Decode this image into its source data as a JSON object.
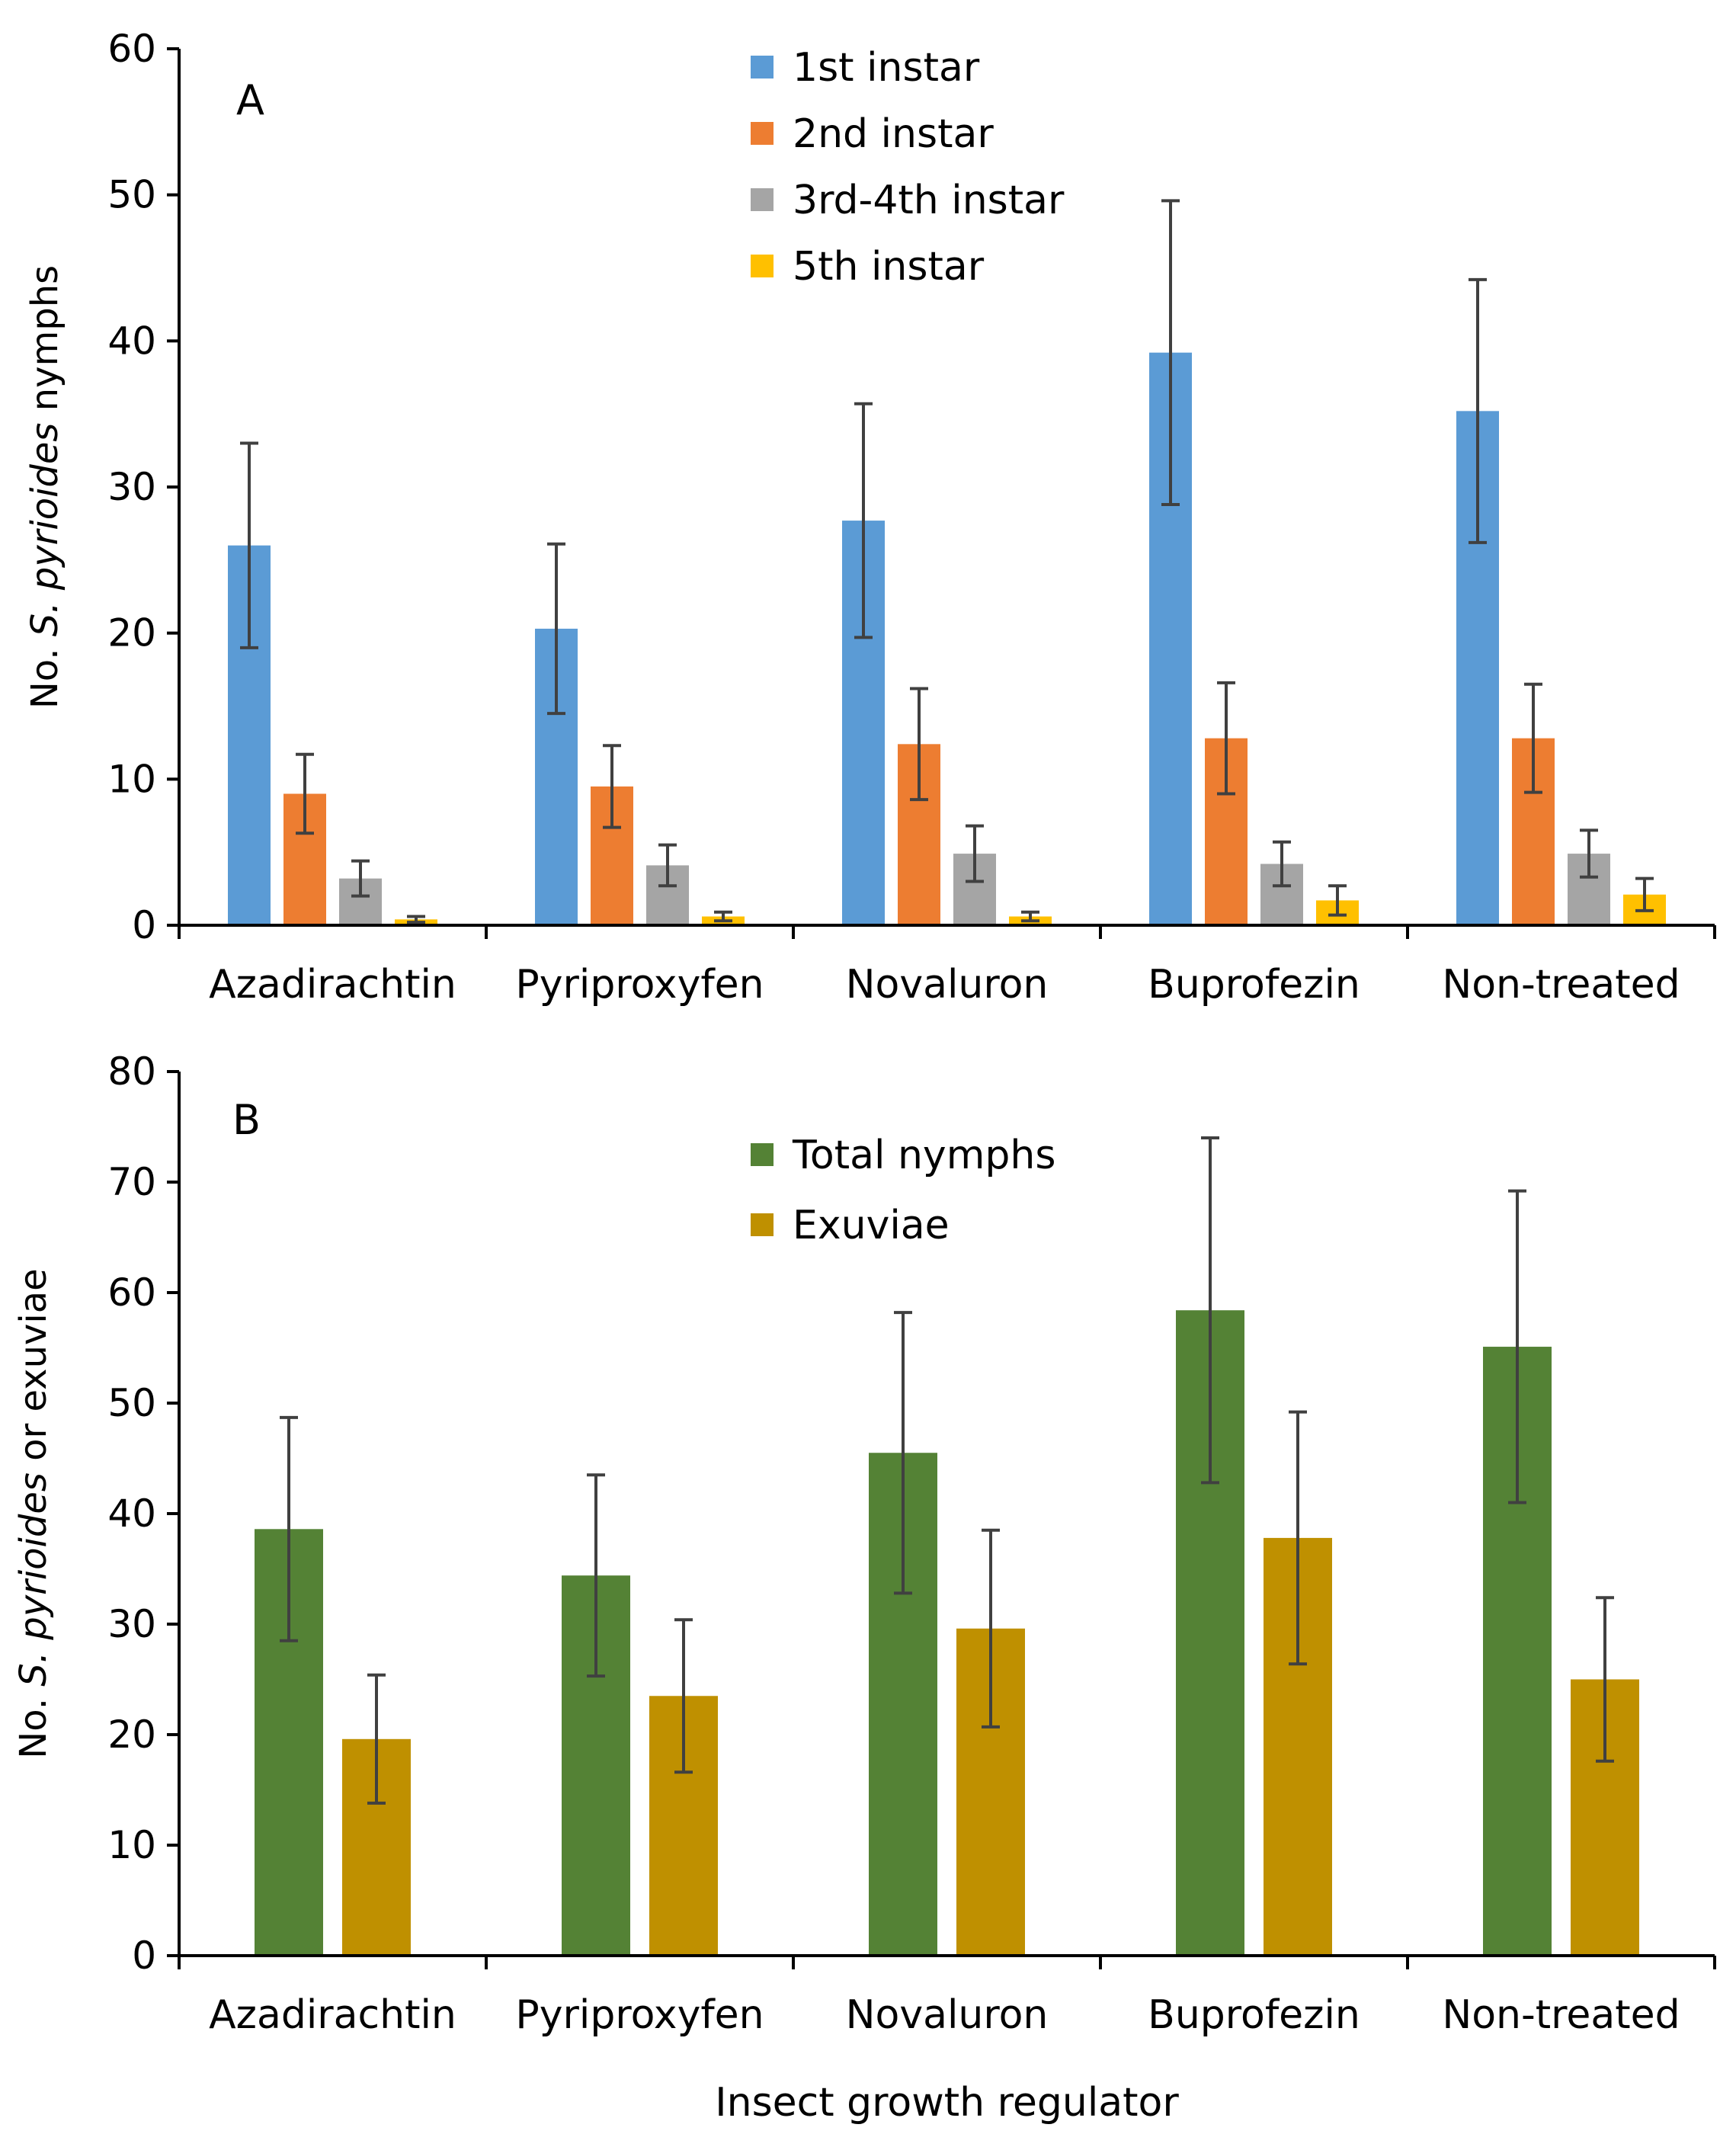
{
  "colors": {
    "first_instar": "#5b9bd5",
    "second_instar": "#ed7d31",
    "third_fourth_instar": "#a5a5a5",
    "fifth_instar": "#ffc000",
    "total_nymphs": "#548235",
    "exuviae": "#bf9000",
    "axis": "#000000",
    "error_bar": "#404040"
  },
  "chart_data": [
    {
      "panel": "A",
      "type": "bar",
      "ylabel_prefix": "No. ",
      "ylabel_italic": "S. pyrioides",
      "ylabel_suffix": " nymphs",
      "ylim": [
        0,
        60
      ],
      "yticks": [
        0,
        10,
        20,
        30,
        40,
        50,
        60
      ],
      "legend_position": "top-center",
      "categories": [
        "Azadirachtin",
        "Pyriproxyfen",
        "Novaluron",
        "Buprofezin",
        "Non-treated"
      ],
      "series": [
        {
          "name": "1st instar",
          "color_key": "first_instar",
          "values": [
            26.0,
            20.3,
            27.7,
            39.2,
            35.2
          ],
          "errors": [
            7.0,
            5.8,
            8.0,
            10.4,
            9.0
          ]
        },
        {
          "name": "2nd instar",
          "color_key": "second_instar",
          "values": [
            9.0,
            9.5,
            12.4,
            12.8,
            12.8
          ],
          "errors": [
            2.7,
            2.8,
            3.8,
            3.8,
            3.7
          ]
        },
        {
          "name": "3rd-4th instar",
          "color_key": "third_fourth_instar",
          "values": [
            3.2,
            4.1,
            4.9,
            4.2,
            4.9
          ],
          "errors": [
            1.2,
            1.4,
            1.9,
            1.5,
            1.6
          ]
        },
        {
          "name": "5th instar",
          "color_key": "fifth_instar",
          "values": [
            0.4,
            0.6,
            0.6,
            1.7,
            2.1
          ],
          "errors": [
            0.2,
            0.3,
            0.3,
            1.0,
            1.1
          ]
        }
      ]
    },
    {
      "panel": "B",
      "type": "bar",
      "ylabel_prefix": "No. ",
      "ylabel_italic": "S. pyrioides",
      "ylabel_suffix": " or exuviae",
      "xlabel": "Insect growth regulator",
      "ylim": [
        0,
        80
      ],
      "yticks": [
        0,
        10,
        20,
        30,
        40,
        50,
        60,
        70,
        80
      ],
      "legend_position": "top-center",
      "categories": [
        "Azadirachtin",
        "Pyriproxyfen",
        "Novaluron",
        "Buprofezin",
        "Non-treated"
      ],
      "series": [
        {
          "name": "Total nymphs",
          "color_key": "total_nymphs",
          "values": [
            38.6,
            34.4,
            45.5,
            58.4,
            55.1
          ],
          "errors": [
            10.1,
            9.1,
            12.7,
            15.6,
            14.1
          ]
        },
        {
          "name": "Exuviae",
          "color_key": "exuviae",
          "values": [
            19.6,
            23.5,
            29.6,
            37.8,
            25.0
          ],
          "errors": [
            5.8,
            6.9,
            8.9,
            11.4,
            7.4
          ]
        }
      ]
    }
  ]
}
